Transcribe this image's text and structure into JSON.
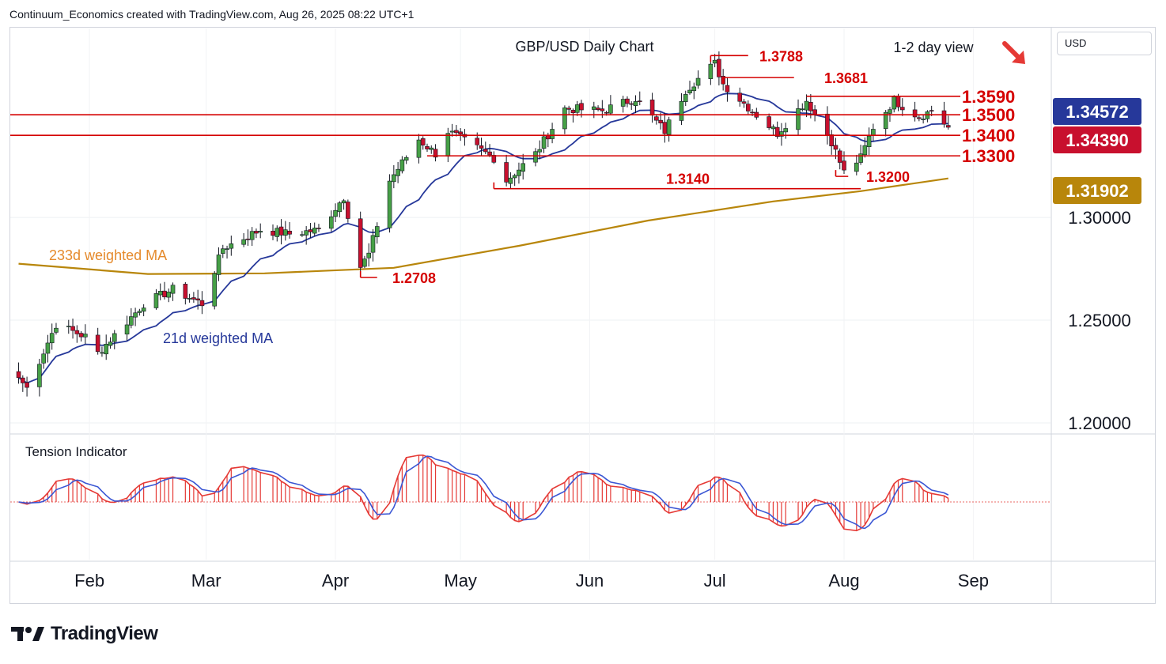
{
  "header": {
    "credit": "Continuum_Economics created with TradingView.com, Aug 26, 2025 08:22 UTC+1"
  },
  "currency": "USD",
  "footer": {
    "brand": "TradingView",
    "logo_icon": "tradingview-logo-icon"
  },
  "chart_data": {
    "type": "candlestick",
    "title": "GBP/USD Daily Chart",
    "view_label": "1-2 day view",
    "view_icon": "arrow-down-right-icon",
    "colors": {
      "up": "#46a046",
      "down": "#c8102e",
      "wick": "#131722",
      "ma21": "#26389a",
      "ma233": "#b8860b",
      "levels": "#d50000",
      "tension_hist": "#e53935",
      "tension_line": "#3a56d4"
    },
    "y_axis": {
      "ticks": [
        "1.30000",
        "1.25000",
        "1.20000"
      ],
      "range": [
        1.195,
        1.392
      ]
    },
    "x_axis": {
      "ticks": [
        "Feb",
        "Mar",
        "Apr",
        "May",
        "Jun",
        "Jul",
        "Aug",
        "Sep"
      ]
    },
    "price_tags": [
      {
        "label": "1.34572",
        "color": "#26389a"
      },
      {
        "label": "1.34390",
        "color": "#c8102e"
      },
      {
        "label": "1.31902",
        "color": "#b8860b"
      }
    ],
    "horizontal_levels": [
      {
        "label": "1.3590",
        "value": 1.359
      },
      {
        "label": "1.3500",
        "value": 1.35
      },
      {
        "label": "1.3400",
        "value": 1.34
      },
      {
        "label": "1.3300",
        "value": 1.33
      }
    ],
    "marked_points": [
      {
        "label": "1.3788",
        "value": 1.3788
      },
      {
        "label": "1.3681",
        "value": 1.3681
      },
      {
        "label": "1.3200",
        "value": 1.32
      },
      {
        "label": "1.3140",
        "value": 1.314
      },
      {
        "label": "1.2708",
        "value": 1.2708
      }
    ],
    "series": [
      {
        "name": "233d weighted MA"
      },
      {
        "name": "21d weighted MA"
      }
    ],
    "anchors": [
      {
        "date": "2025-01-15",
        "close": 1.222
      },
      {
        "date": "2025-01-17",
        "close": 1.217
      },
      {
        "date": "2025-01-24",
        "close": 1.248
      },
      {
        "date": "2025-01-31",
        "close": 1.242
      },
      {
        "date": "2025-02-03",
        "close": 1.234
      },
      {
        "date": "2025-02-14",
        "close": 1.258
      },
      {
        "date": "2025-02-21",
        "close": 1.265
      },
      {
        "date": "2025-02-28",
        "close": 1.258
      },
      {
        "date": "2025-03-05",
        "close": 1.285
      },
      {
        "date": "2025-03-14",
        "close": 1.294
      },
      {
        "date": "2025-03-21",
        "close": 1.292
      },
      {
        "date": "2025-03-28",
        "close": 1.294
      },
      {
        "date": "2025-04-03",
        "close": 1.31
      },
      {
        "date": "2025-04-07",
        "close": 1.276
      },
      {
        "date": "2025-04-09",
        "close": 1.282
      },
      {
        "date": "2025-04-14",
        "close": 1.318
      },
      {
        "date": "2025-04-21",
        "close": 1.338
      },
      {
        "date": "2025-04-25",
        "close": 1.331
      },
      {
        "date": "2025-04-28",
        "close": 1.342
      },
      {
        "date": "2025-05-09",
        "close": 1.329
      },
      {
        "date": "2025-05-12",
        "close": 1.318
      },
      {
        "date": "2025-05-19",
        "close": 1.331
      },
      {
        "date": "2025-05-26",
        "close": 1.353
      },
      {
        "date": "2025-06-04",
        "close": 1.352
      },
      {
        "date": "2025-06-12",
        "close": 1.358
      },
      {
        "date": "2025-06-19",
        "close": 1.342
      },
      {
        "date": "2025-06-24",
        "close": 1.362
      },
      {
        "date": "2025-07-01",
        "close": 1.375
      },
      {
        "date": "2025-07-03",
        "close": 1.365
      },
      {
        "date": "2025-07-11",
        "close": 1.35
      },
      {
        "date": "2025-07-16",
        "close": 1.341
      },
      {
        "date": "2025-07-23",
        "close": 1.357
      },
      {
        "date": "2025-07-29",
        "close": 1.337
      },
      {
        "date": "2025-08-01",
        "close": 1.322
      },
      {
        "date": "2025-08-05",
        "close": 1.329
      },
      {
        "date": "2025-08-08",
        "close": 1.344
      },
      {
        "date": "2025-08-13",
        "close": 1.357
      },
      {
        "date": "2025-08-19",
        "close": 1.349
      },
      {
        "date": "2025-08-22",
        "close": 1.352
      },
      {
        "date": "2025-08-26",
        "close": 1.3439
      }
    ],
    "ma233_anchors": [
      {
        "date": "2025-01-15",
        "value": 1.2775
      },
      {
        "date": "2025-02-15",
        "value": 1.2725
      },
      {
        "date": "2025-03-15",
        "value": 1.2728
      },
      {
        "date": "2025-04-15",
        "value": 1.2755
      },
      {
        "date": "2025-05-15",
        "value": 1.2862
      },
      {
        "date": "2025-06-15",
        "value": 1.2985
      },
      {
        "date": "2025-07-15",
        "value": 1.3078
      },
      {
        "date": "2025-08-05",
        "value": 1.3128
      },
      {
        "date": "2025-08-26",
        "value": 1.31902
      }
    ],
    "ma21_last": 1.34572,
    "tension": {
      "label": "Tension Indicator"
    }
  }
}
